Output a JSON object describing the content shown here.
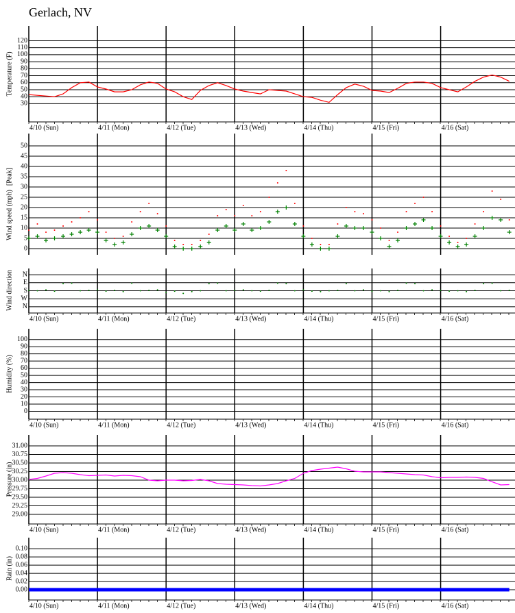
{
  "title": "Gerlach, NV",
  "chart_data": [
    {
      "type": "line",
      "ylabel": "Temperature (F)",
      "x": [
        0,
        3,
        6,
        9,
        12,
        15,
        18,
        21,
        24,
        27,
        30,
        33,
        36,
        39,
        42,
        45,
        48,
        51,
        54,
        57,
        60,
        63,
        66,
        69,
        72,
        75,
        78,
        81,
        84,
        87,
        90,
        93,
        96,
        99,
        102,
        105,
        108,
        111,
        114,
        117,
        120,
        123,
        126,
        129,
        132,
        135,
        138,
        141,
        144,
        147,
        150,
        153,
        156,
        159,
        162,
        165,
        168
      ],
      "xlim": [
        0,
        170
      ],
      "xticks": [
        {
          "value": 0,
          "label": "4/10 (Sun)"
        },
        {
          "value": 24,
          "label": "4/11 (Mon)"
        },
        {
          "value": 48,
          "label": "4/12 (Tue)"
        },
        {
          "value": 72,
          "label": "4/13 (Wed)"
        },
        {
          "value": 96,
          "label": "4/14 (Thu)"
        },
        {
          "value": 120,
          "label": "4/15 (Fri)"
        },
        {
          "value": 144,
          "label": "4/16 (Sat)"
        }
      ],
      "ylim": [
        4,
        141
      ],
      "yticks": [
        30,
        40,
        50,
        60,
        70,
        80,
        90,
        100,
        110,
        120
      ],
      "grid": true,
      "series": [
        {
          "color": "#ff0000",
          "values": [
            43,
            42,
            41,
            40,
            44,
            53,
            60,
            61,
            54,
            51,
            47,
            47,
            50,
            57,
            61,
            59,
            51,
            47,
            40,
            36,
            49,
            56,
            60,
            56,
            51,
            48,
            46,
            44,
            50,
            49,
            48,
            44,
            40,
            39,
            35,
            32,
            43,
            53,
            58,
            55,
            49,
            48,
            46,
            52,
            59,
            61,
            61,
            59,
            53,
            50,
            47,
            54,
            62,
            68,
            71,
            68,
            62
          ]
        }
      ]
    },
    {
      "type": "scatter",
      "ylabel": "Wind speed (mph)",
      "x": [
        0,
        3,
        6,
        9,
        12,
        15,
        18,
        21,
        24,
        27,
        30,
        33,
        36,
        39,
        42,
        45,
        48,
        51,
        54,
        57,
        60,
        63,
        66,
        69,
        72,
        75,
        78,
        81,
        84,
        87,
        90,
        93,
        96,
        99,
        102,
        105,
        108,
        111,
        114,
        117,
        120,
        123,
        126,
        129,
        132,
        135,
        138,
        141,
        144,
        147,
        150,
        153,
        156,
        159,
        162,
        165,
        168
      ],
      "xlim": [
        0,
        170
      ],
      "xticks": [
        0,
        24,
        48,
        72,
        96,
        120,
        144
      ],
      "ylim": [
        -3,
        56
      ],
      "yticks": [
        0,
        5,
        10,
        15,
        20,
        25,
        30,
        35,
        40,
        45,
        50
      ],
      "grid": true,
      "series": [
        {
          "name": "[Peak]",
          "color": "#ff0000",
          "marker": "dot",
          "values": [
            9,
            12,
            8,
            9,
            11,
            13,
            15,
            18,
            14,
            8,
            5,
            6,
            13,
            18,
            22,
            17,
            11,
            4,
            2,
            2,
            4,
            7,
            16,
            19,
            16,
            21,
            16,
            18,
            25,
            32,
            38,
            22,
            11,
            5,
            2,
            2,
            12,
            20,
            18,
            17,
            14,
            10,
            4,
            8,
            18,
            22,
            25,
            18,
            11,
            6,
            3,
            5,
            12,
            18,
            28,
            24,
            14
          ]
        },
        {
          "color": "#008000",
          "marker": "plus",
          "values": [
            5,
            6,
            4,
            5,
            6,
            7,
            8,
            9,
            8,
            4,
            2,
            3,
            7,
            10,
            11,
            9,
            6,
            1,
            0,
            0,
            1,
            3,
            9,
            11,
            9,
            12,
            9,
            10,
            13,
            18,
            20,
            12,
            6,
            2,
            0,
            0,
            6,
            11,
            10,
            10,
            8,
            5,
            1,
            4,
            10,
            12,
            14,
            10,
            6,
            3,
            1,
            2,
            6,
            10,
            15,
            14,
            8
          ]
        }
      ]
    },
    {
      "type": "scatter",
      "ylabel": "Wind direction",
      "x": [
        0,
        3,
        6,
        9,
        12,
        15,
        18,
        21,
        24,
        27,
        30,
        33,
        36,
        39,
        42,
        45,
        48,
        51,
        54,
        57,
        60,
        63,
        66,
        69,
        72,
        75,
        78,
        81,
        84,
        87,
        90,
        93,
        96,
        99,
        102,
        105,
        108,
        111,
        114,
        117,
        120,
        123,
        126,
        129,
        132,
        135,
        138,
        141,
        144,
        147,
        150,
        153,
        156,
        159,
        162,
        165,
        168
      ],
      "xlim": [
        0,
        170
      ],
      "xticks": [
        {
          "value": 0,
          "label": "4/10 (Sun)"
        },
        {
          "value": 24,
          "label": "4/11 (Mon)"
        },
        {
          "value": 48,
          "label": "4/12 (Tue)"
        },
        {
          "value": 72,
          "label": "4/13 (Wed)"
        },
        {
          "value": 96,
          "label": "4/14 (Thu)"
        },
        {
          "value": 120,
          "label": "4/15 (Fri)"
        },
        {
          "value": 144,
          "label": "4/16 (Sat)"
        }
      ],
      "ylim": [
        430,
        -70
      ],
      "yticks": [
        {
          "value": 0,
          "label": "N"
        },
        {
          "value": 90,
          "label": "E"
        },
        {
          "value": 180,
          "label": "S"
        },
        {
          "value": 270,
          "label": "W"
        },
        {
          "value": 360,
          "label": "N"
        }
      ],
      "grid": true,
      "series": [
        {
          "color": "#008000",
          "marker": "dot",
          "values": [
            175,
            180,
            170,
            185,
            100,
            95,
            180,
            175,
            170,
            185,
            175,
            190,
            95,
            180,
            175,
            170,
            200,
            185,
            210,
            190,
            180,
            100,
            95,
            180,
            175,
            170,
            180,
            185,
            175,
            95,
            100,
            180,
            170,
            185,
            190,
            180,
            175,
            100,
            180,
            170,
            185,
            180,
            190,
            175,
            95,
            100,
            180,
            170,
            175,
            185,
            180,
            190,
            175,
            100,
            95,
            180,
            175
          ]
        }
      ]
    },
    {
      "type": "line",
      "ylabel": "Humidity (%)",
      "xlim": [
        0,
        170
      ],
      "xticks": [
        {
          "value": 0,
          "label": "4/10 (Sun)"
        },
        {
          "value": 24,
          "label": "4/11 (Mon)"
        },
        {
          "value": 48,
          "label": "4/12 (Tue)"
        },
        {
          "value": 72,
          "label": "4/13 (Wed)"
        },
        {
          "value": 96,
          "label": "4/14 (Thu)"
        },
        {
          "value": 120,
          "label": "4/15 (Fri)"
        },
        {
          "value": 144,
          "label": "4/16 (Sat)"
        }
      ],
      "ylim": [
        -11,
        115
      ],
      "yticks": [
        0,
        10,
        20,
        30,
        40,
        50,
        60,
        70,
        80,
        90,
        100
      ],
      "grid": true,
      "series": []
    },
    {
      "type": "line",
      "ylabel": "Pressure (in)",
      "x": [
        0,
        3,
        6,
        9,
        12,
        15,
        18,
        21,
        24,
        27,
        30,
        33,
        36,
        39,
        42,
        45,
        48,
        51,
        54,
        57,
        60,
        63,
        66,
        69,
        72,
        75,
        78,
        81,
        84,
        87,
        90,
        93,
        96,
        99,
        102,
        105,
        108,
        111,
        114,
        117,
        120,
        123,
        126,
        129,
        132,
        135,
        138,
        141,
        144,
        147,
        150,
        153,
        156,
        159,
        162,
        165,
        168
      ],
      "xlim": [
        0,
        170
      ],
      "xticks": [
        {
          "value": 0,
          "label": "4/10 (Sun)"
        },
        {
          "value": 24,
          "label": "4/11 (Mon)"
        },
        {
          "value": 48,
          "label": "4/12 (Tue)"
        },
        {
          "value": 72,
          "label": "4/13 (Wed)"
        },
        {
          "value": 96,
          "label": "4/14 (Thu)"
        },
        {
          "value": 120,
          "label": "4/15 (Fri)"
        },
        {
          "value": 144,
          "label": "4/16 (Sat)"
        }
      ],
      "ylim": [
        28.72,
        31.32
      ],
      "yticks": [
        {
          "value": 29,
          "label": "29.00"
        },
        {
          "value": 29.25,
          "label": "29.25"
        },
        {
          "value": 29.5,
          "label": "29.50"
        },
        {
          "value": 29.75,
          "label": "29.75"
        },
        {
          "value": 30,
          "label": "30.00"
        },
        {
          "value": 30.25,
          "label": "30.25"
        },
        {
          "value": 30.5,
          "label": "30.50"
        },
        {
          "value": 30.75,
          "label": "30.75"
        },
        {
          "value": 31,
          "label": "31.00"
        }
      ],
      "grid": true,
      "series": [
        {
          "color": "#ff00ff",
          "values": [
            30.02,
            30.05,
            30.12,
            30.2,
            30.22,
            30.2,
            30.16,
            30.13,
            30.14,
            30.15,
            30.12,
            30.14,
            30.13,
            30.1,
            30.0,
            29.98,
            30.0,
            30.0,
            29.98,
            29.99,
            30.02,
            29.98,
            29.9,
            29.88,
            29.87,
            29.86,
            29.84,
            29.83,
            29.86,
            29.9,
            29.98,
            30.05,
            30.2,
            30.28,
            30.32,
            30.35,
            30.38,
            30.33,
            30.26,
            30.24,
            30.24,
            30.24,
            30.22,
            30.2,
            30.18,
            30.16,
            30.15,
            30.1,
            30.07,
            30.08,
            30.08,
            30.09,
            30.08,
            30.05,
            29.95,
            29.86,
            29.87
          ]
        }
      ]
    },
    {
      "type": "line",
      "ylabel": "Rain (in)",
      "x": [
        0,
        3,
        6,
        9,
        12,
        15,
        18,
        21,
        24,
        27,
        30,
        33,
        36,
        39,
        42,
        45,
        48,
        51,
        54,
        57,
        60,
        63,
        66,
        69,
        72,
        75,
        78,
        81,
        84,
        87,
        90,
        93,
        96,
        99,
        102,
        105,
        108,
        111,
        114,
        117,
        120,
        123,
        126,
        129,
        132,
        135,
        138,
        141,
        144,
        147,
        150,
        153,
        156,
        159,
        162,
        165,
        168
      ],
      "xlim": [
        0,
        170
      ],
      "xticks": [
        {
          "value": 0,
          "label": "4/10 (Sun)"
        },
        {
          "value": 24,
          "label": "4/11 (Mon)"
        },
        {
          "value": 48,
          "label": "4/12 (Tue)"
        },
        {
          "value": 72,
          "label": "4/13 (Wed)"
        },
        {
          "value": 96,
          "label": "4/14 (Thu)"
        },
        {
          "value": 120,
          "label": "4/15 (Fri)"
        },
        {
          "value": 144,
          "label": "4/16 (Sat)"
        }
      ],
      "ylim": [
        -0.025,
        0.127
      ],
      "yticks": [
        {
          "value": 0,
          "label": "0.00"
        },
        {
          "value": 0.02,
          "label": "0.02"
        },
        {
          "value": 0.04,
          "label": "0.04"
        },
        {
          "value": 0.06,
          "label": "0.06"
        },
        {
          "value": 0.08,
          "label": "0.08"
        },
        {
          "value": 0.1,
          "label": "0.10"
        }
      ],
      "grid": true,
      "series": [
        {
          "color": "#0000ff",
          "linewidth": 5,
          "values": [
            0,
            0,
            0,
            0,
            0,
            0,
            0,
            0,
            0,
            0,
            0,
            0,
            0,
            0,
            0,
            0,
            0,
            0,
            0,
            0,
            0,
            0,
            0,
            0,
            0,
            0,
            0,
            0,
            0,
            0,
            0,
            0,
            0,
            0,
            0,
            0,
            0,
            0,
            0,
            0,
            0,
            0,
            0,
            0,
            0,
            0,
            0,
            0,
            0,
            0,
            0,
            0,
            0,
            0,
            0,
            0,
            0
          ]
        }
      ]
    }
  ]
}
